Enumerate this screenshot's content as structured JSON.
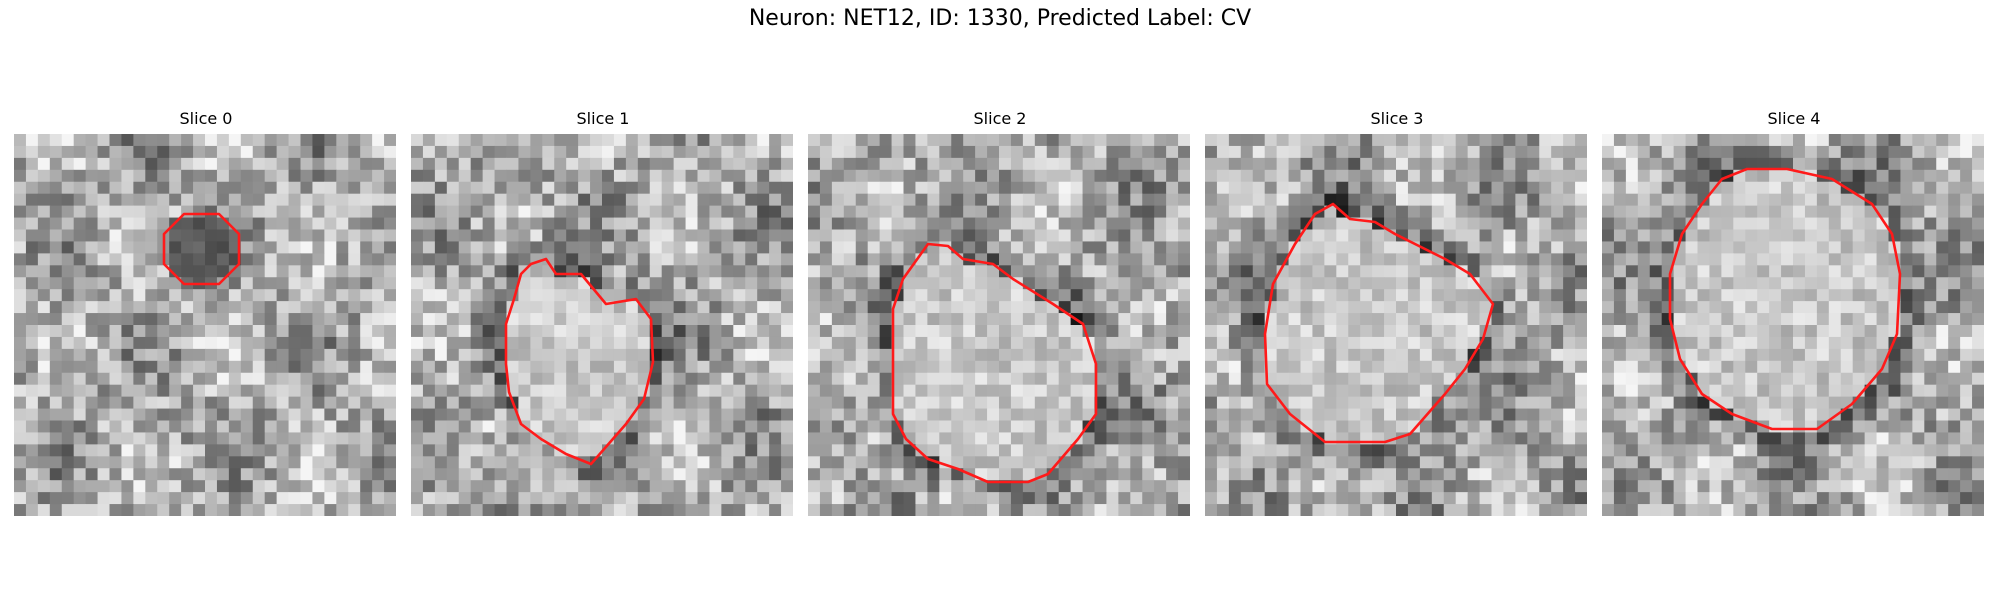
{
  "figure": {
    "title": "Neuron: NET12, ID: 1330, Predicted Label: CV"
  },
  "panels": [
    {
      "label": "Slice 0"
    },
    {
      "label": "Slice 1"
    },
    {
      "label": "Slice 2"
    },
    {
      "label": "Slice 3"
    },
    {
      "label": "Slice 4"
    }
  ],
  "colors": {
    "contour": "#ff1a1a"
  }
}
